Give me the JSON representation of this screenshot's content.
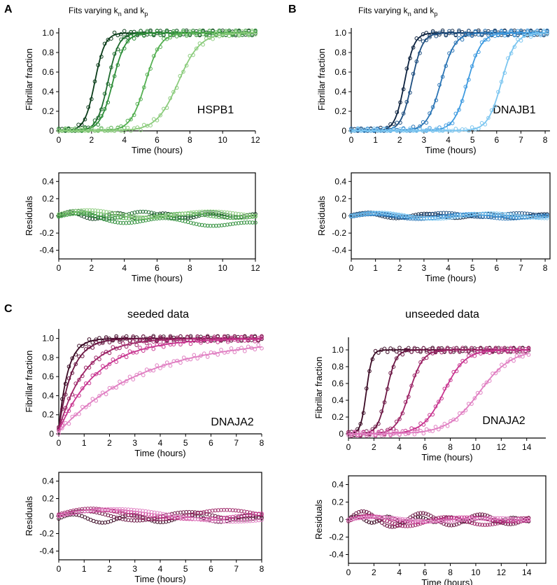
{
  "panel_letters": {
    "a": "A",
    "b": "B",
    "c": "C"
  },
  "titles": {
    "a_prefix": "Fits varying k",
    "a_sub1": "n",
    "a_mid": " and k",
    "a_sub2": "p",
    "b_prefix": "Fits varying k",
    "b_sub1": "n",
    "b_mid": " and k",
    "b_sub2": "p",
    "c_left": "seeded data",
    "c_right": "unseeded data"
  },
  "colors": {
    "green": [
      "#0b3d1a",
      "#1f6b2f",
      "#2f8f3a",
      "#55b052",
      "#8ccc7d"
    ],
    "blue": [
      "#0d2340",
      "#1f4f80",
      "#2b75b5",
      "#3f9be0",
      "#7cc6f0"
    ],
    "magenta": [
      "#3a0a24",
      "#6b1744",
      "#9c2466",
      "#c83690",
      "#e07fc2"
    ]
  },
  "chart_data": [
    {
      "id": "A_top",
      "type": "scatter",
      "label": "HSPB1",
      "palette": "green",
      "xlabel": "Time (hours)",
      "ylabel": "Fibrillar fraction",
      "xlim": [
        0,
        12
      ],
      "ylim": [
        0,
        1.05
      ],
      "xticks": [
        0,
        2,
        4,
        6,
        8,
        10,
        12
      ],
      "yticks": [
        0,
        0.2,
        0.4,
        0.6,
        0.8,
        1.0
      ],
      "yticklabels": [
        "0",
        "0.2",
        "0.4",
        "0.6",
        "0.8",
        "1.0"
      ],
      "series": [
        {
          "name": "1",
          "kind": "sigmoid",
          "mid": 2.2,
          "k": 3.2
        },
        {
          "name": "2",
          "kind": "sigmoid",
          "mid": 3.0,
          "k": 3.0
        },
        {
          "name": "3",
          "kind": "sigmoid",
          "mid": 3.3,
          "k": 2.6
        },
        {
          "name": "4",
          "kind": "sigmoid",
          "mid": 5.3,
          "k": 2.2
        },
        {
          "name": "5",
          "kind": "sigmoid",
          "mid": 7.3,
          "k": 1.5
        }
      ]
    },
    {
      "id": "A_res",
      "type": "scatter",
      "palette": "green",
      "xlabel": "Time (hours)",
      "ylabel": "Residuals",
      "xlim": [
        0,
        12
      ],
      "ylim": [
        -0.5,
        0.5
      ],
      "xticks": [
        0,
        2,
        4,
        6,
        8,
        10,
        12
      ],
      "yticks": [
        -0.4,
        -0.2,
        0,
        0.2,
        0.4
      ],
      "yticklabels": [
        "-0.4",
        "-0.2",
        "0",
        "0.2",
        "0.4"
      ],
      "series": [
        {
          "name": "1",
          "kind": "wave",
          "amp": 0.04,
          "freq": 1.3,
          "off": 0.0,
          "slope": 0
        },
        {
          "name": "2",
          "kind": "wave",
          "amp": 0.05,
          "freq": 0.9,
          "off": 0.01,
          "slope": 0
        },
        {
          "name": "3",
          "kind": "wave",
          "amp": 0.05,
          "freq": 0.7,
          "off": -0.01,
          "slope": -0.008
        },
        {
          "name": "4",
          "kind": "wave",
          "amp": 0.04,
          "freq": 0.6,
          "off": 0.0,
          "slope": 0
        },
        {
          "name": "5",
          "kind": "wave",
          "amp": 0.05,
          "freq": 0.5,
          "off": 0.02,
          "slope": 0
        }
      ]
    },
    {
      "id": "B_top",
      "type": "scatter",
      "label": "DNAJB1",
      "palette": "blue",
      "xlabel": "Time (hours)",
      "ylabel": "Fibrillar fraction",
      "xlim": [
        0,
        8.2
      ],
      "ylim": [
        0,
        1.05
      ],
      "xticks": [
        0,
        1,
        2,
        3,
        4,
        5,
        6,
        7,
        8
      ],
      "yticks": [
        0,
        0.2,
        0.4,
        0.6,
        0.8,
        1.0
      ],
      "yticklabels": [
        "0",
        "0.2",
        "0.4",
        "0.6",
        "0.8",
        "1.0"
      ],
      "series": [
        {
          "name": "1",
          "kind": "sigmoid",
          "mid": 2.2,
          "k": 5.0
        },
        {
          "name": "2",
          "kind": "sigmoid",
          "mid": 2.5,
          "k": 4.5
        },
        {
          "name": "3",
          "kind": "sigmoid",
          "mid": 3.7,
          "k": 3.5
        },
        {
          "name": "4",
          "kind": "sigmoid",
          "mid": 4.8,
          "k": 3.5
        },
        {
          "name": "5",
          "kind": "sigmoid",
          "mid": 6.2,
          "k": 3.5
        }
      ]
    },
    {
      "id": "B_res",
      "type": "scatter",
      "palette": "blue",
      "xlabel": "Time (hours)",
      "ylabel": "Residuals",
      "xlim": [
        0,
        8.2
      ],
      "ylim": [
        -0.5,
        0.5
      ],
      "xticks": [
        0,
        1,
        2,
        3,
        4,
        5,
        6,
        7,
        8
      ],
      "yticks": [
        -0.4,
        -0.2,
        0,
        0.2,
        0.4
      ],
      "yticklabels": [
        "-0.4",
        "-0.2",
        "0",
        "0.2",
        "0.4"
      ],
      "series": [
        {
          "name": "1",
          "kind": "wave",
          "amp": 0.03,
          "freq": 1.5,
          "off": 0.0,
          "slope": 0
        },
        {
          "name": "2",
          "kind": "wave",
          "amp": 0.03,
          "freq": 1.2,
          "off": 0.01,
          "slope": 0
        },
        {
          "name": "3",
          "kind": "wave",
          "amp": 0.03,
          "freq": 1.0,
          "off": -0.01,
          "slope": 0
        },
        {
          "name": "4",
          "kind": "wave",
          "amp": 0.03,
          "freq": 0.9,
          "off": 0.0,
          "slope": 0
        },
        {
          "name": "5",
          "kind": "wave",
          "amp": 0.04,
          "freq": 0.8,
          "off": 0.0,
          "slope": 0
        }
      ]
    },
    {
      "id": "C_left_top",
      "type": "scatter",
      "label": "DNAJA2",
      "palette": "magenta",
      "xlabel": "Time (hours)",
      "ylabel": "Fibrillar fraction",
      "xlim": [
        0,
        8
      ],
      "ylim": [
        0,
        1.1
      ],
      "xticks": [
        0,
        1,
        2,
        3,
        4,
        5,
        6,
        7,
        8
      ],
      "yticks": [
        0,
        0.2,
        0.4,
        0.6,
        0.8,
        1.0
      ],
      "yticklabels": [
        "0",
        "0.2",
        "0.4",
        "0.6",
        "0.8",
        "1.0"
      ],
      "series": [
        {
          "name": "1",
          "kind": "expo",
          "rate": 2.8,
          "start": 0.05
        },
        {
          "name": "2",
          "kind": "expo",
          "rate": 1.9,
          "start": 0.05
        },
        {
          "name": "3",
          "kind": "expo",
          "rate": 1.0,
          "start": 0.04
        },
        {
          "name": "4",
          "kind": "expo",
          "rate": 0.65,
          "start": 0.03
        },
        {
          "name": "5",
          "kind": "expo",
          "rate": 0.3,
          "start": 0.02
        }
      ]
    },
    {
      "id": "C_left_res",
      "type": "scatter",
      "palette": "magenta",
      "xlabel": "Time (hours)",
      "ylabel": "Residuals",
      "xlim": [
        0,
        8
      ],
      "ylim": [
        -0.5,
        0.5
      ],
      "xticks": [
        0,
        1,
        2,
        3,
        4,
        5,
        6,
        7,
        8
      ],
      "yticks": [
        -0.4,
        -0.2,
        0,
        0.2,
        0.4
      ],
      "yticklabels": [
        "-0.4",
        "-0.2",
        "0",
        "0.2",
        "0.4"
      ],
      "series": [
        {
          "name": "1",
          "kind": "wave",
          "amp": 0.05,
          "freq": 1.6,
          "off": -0.03,
          "slope": 0
        },
        {
          "name": "2",
          "kind": "wave",
          "amp": 0.06,
          "freq": 0.9,
          "off": 0.0,
          "slope": 0
        },
        {
          "name": "3",
          "kind": "wave",
          "amp": 0.07,
          "freq": 0.7,
          "off": 0.02,
          "slope": 0
        },
        {
          "name": "4",
          "kind": "wave",
          "amp": 0.06,
          "freq": 0.5,
          "off": 0.01,
          "slope": 0
        },
        {
          "name": "5",
          "kind": "wave",
          "amp": 0.09,
          "freq": 0.4,
          "off": 0.0,
          "slope": 0
        }
      ]
    },
    {
      "id": "C_right_top",
      "type": "scatter",
      "label": "DNAJA2",
      "palette": "magenta",
      "xlabel": "Time (hours)",
      "ylabel": "Fibrillar fraction",
      "xlim": [
        0,
        15.5
      ],
      "ylim": [
        -0.05,
        1.15
      ],
      "xticks": [
        0,
        2,
        4,
        6,
        8,
        10,
        12,
        14
      ],
      "yticks": [
        0,
        0.2,
        0.4,
        0.6,
        0.8,
        1.0
      ],
      "yticklabels": [
        "0",
        "0.2",
        "0.4",
        "0.6",
        "0.8",
        "1.0"
      ],
      "series": [
        {
          "name": "1",
          "kind": "sigmoid",
          "mid": 1.4,
          "k": 4.5
        },
        {
          "name": "2",
          "kind": "sigmoid",
          "mid": 3.0,
          "k": 2.8
        },
        {
          "name": "3",
          "kind": "sigmoid",
          "mid": 4.8,
          "k": 1.9
        },
        {
          "name": "4",
          "kind": "sigmoid",
          "mid": 7.5,
          "k": 1.2
        },
        {
          "name": "5",
          "kind": "sigmoid",
          "mid": 10.3,
          "k": 0.8
        }
      ]
    },
    {
      "id": "C_right_res",
      "type": "scatter",
      "palette": "magenta",
      "xlabel": "Time (hours)",
      "ylabel": "Residuals",
      "xlim": [
        0,
        15.5
      ],
      "ylim": [
        -0.5,
        0.5
      ],
      "xticks": [
        0,
        2,
        4,
        6,
        8,
        10,
        12,
        14
      ],
      "yticks": [
        -0.4,
        -0.2,
        0,
        0.2,
        0.4
      ],
      "yticklabels": [
        "-0.4",
        "-0.2",
        "0",
        "0.2",
        "0.4"
      ],
      "series": [
        {
          "name": "1",
          "kind": "wave",
          "amp": 0.04,
          "freq": 1.5,
          "off": 0.0,
          "slope": 0
        },
        {
          "name": "2",
          "kind": "wave",
          "amp": 0.1,
          "freq": 0.8,
          "off": 0.0,
          "slope": 0
        },
        {
          "name": "3",
          "kind": "wave",
          "amp": 0.07,
          "freq": 0.6,
          "off": -0.02,
          "slope": 0
        },
        {
          "name": "4",
          "kind": "wave",
          "amp": 0.04,
          "freq": 0.5,
          "off": 0.0,
          "slope": 0
        },
        {
          "name": "5",
          "kind": "wave",
          "amp": 0.03,
          "freq": 0.4,
          "off": 0.0,
          "slope": 0
        }
      ]
    }
  ]
}
